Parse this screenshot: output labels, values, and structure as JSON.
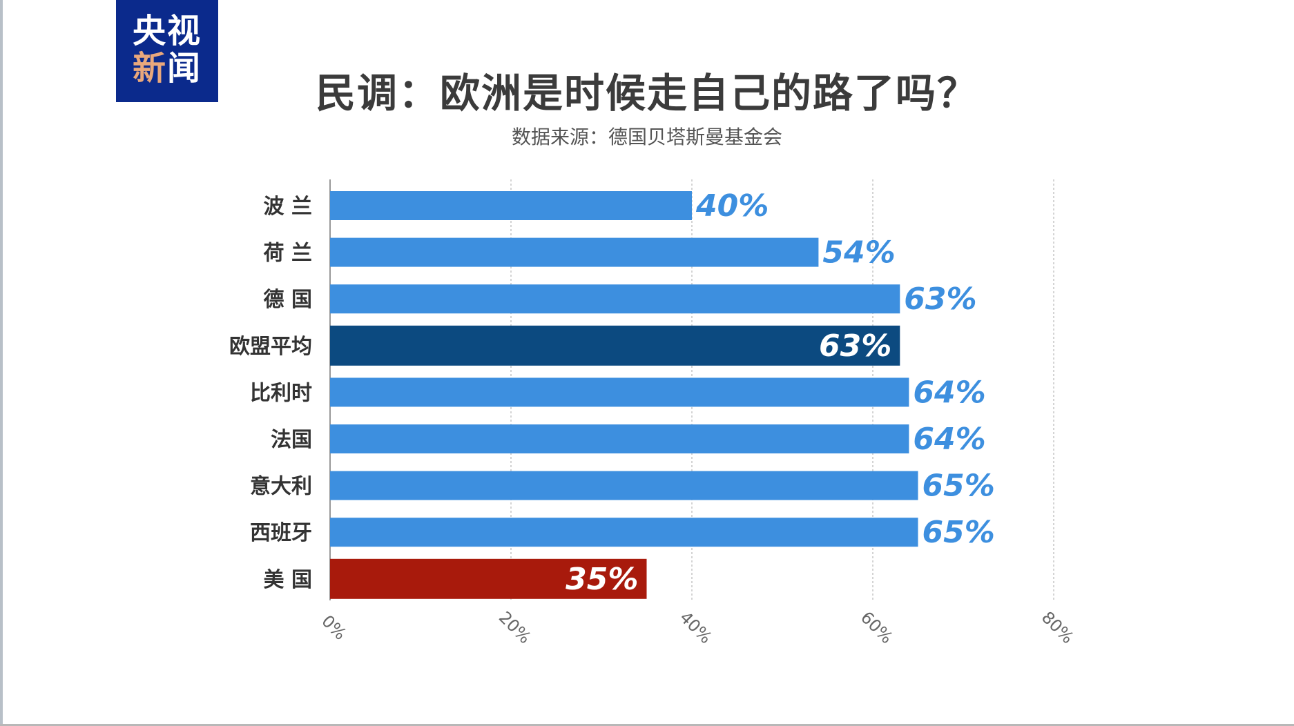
{
  "logo": {
    "line1": "央视",
    "line2a": "新",
    "line2b": "闻"
  },
  "title": "民调：欧洲是时候走自己的路了吗？",
  "subtitle": "数据来源：德国贝塔斯曼基金会",
  "colors": {
    "default": "#3d8fdf",
    "eu_average": "#0c4a80",
    "usa": "#a81a0c",
    "title": "#3b3b3b"
  },
  "chart_data": {
    "type": "bar",
    "orientation": "horizontal",
    "categories": [
      "波 兰",
      "荷 兰",
      "德 国",
      "欧盟平均",
      "比利时",
      "法国",
      "意大利",
      "西班牙",
      "美 国"
    ],
    "values": [
      40,
      54,
      63,
      63,
      64,
      64,
      65,
      65,
      35
    ],
    "data_labels": [
      "40%",
      "54%",
      "63%",
      "63%",
      "64%",
      "64%",
      "65%",
      "65%",
      "35%"
    ],
    "highlight": {
      "欧盟平均": "eu_average",
      "美 国": "usa"
    },
    "xlim": [
      0,
      80
    ],
    "xticks": [
      0,
      20,
      40,
      60,
      80
    ],
    "xtick_labels": [
      "0%",
      "20%",
      "40%",
      "60%",
      "80%"
    ],
    "grid": "vertical dashed",
    "title": "民调：欧洲是时候走自己的路了吗？",
    "xlabel": "",
    "ylabel": ""
  }
}
